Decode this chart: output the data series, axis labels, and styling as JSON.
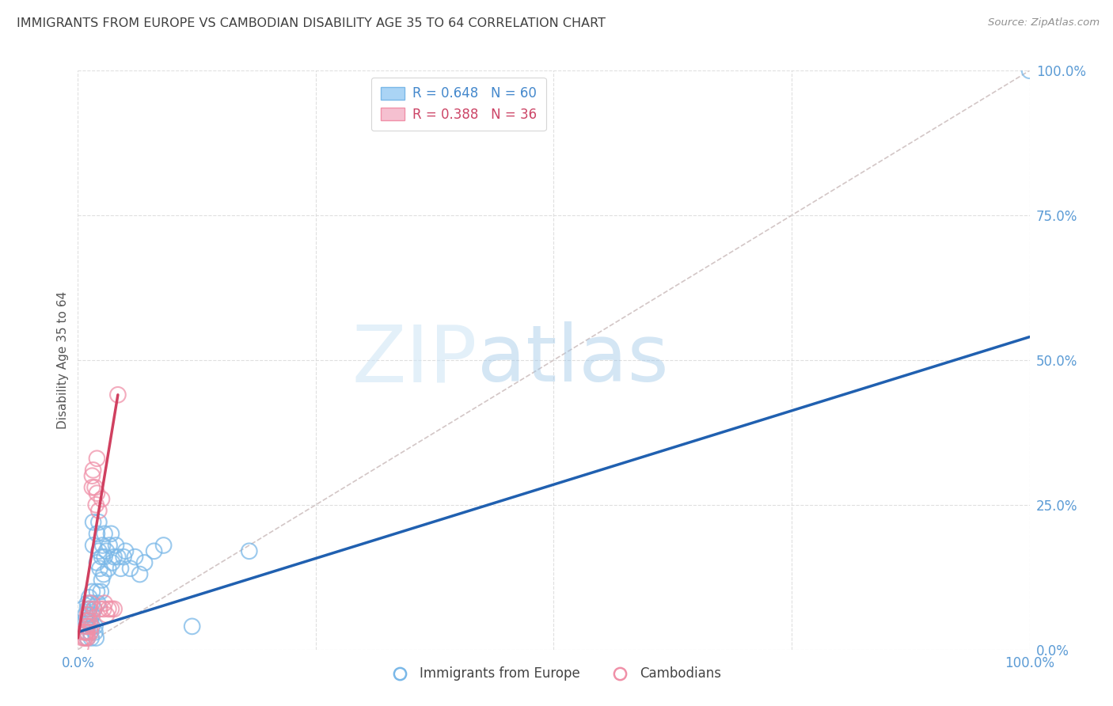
{
  "title": "IMMIGRANTS FROM EUROPE VS CAMBODIAN DISABILITY AGE 35 TO 64 CORRELATION CHART",
  "source": "Source: ZipAtlas.com",
  "ylabel": "Disability Age 35 to 64",
  "xlim": [
    0.0,
    1.0
  ],
  "ylim": [
    0.0,
    1.0
  ],
  "ytick_positions": [
    0.0,
    0.25,
    0.5,
    0.75,
    1.0
  ],
  "ytick_labels": [
    "0.0%",
    "25.0%",
    "50.0%",
    "75.0%",
    "100.0%"
  ],
  "xtick_positions": [
    0.0,
    1.0
  ],
  "xtick_labels": [
    "0.0%",
    "100.0%"
  ],
  "watermark_zip": "ZIP",
  "watermark_atlas": "atlas",
  "blue_color": "#5b9bd5",
  "pink_color": "#e8748a",
  "diag_color": "#c8b8b8",
  "axis_label_color": "#5b9bd5",
  "grid_color": "#d8d8d8",
  "background_color": "#ffffff",
  "title_color": "#404040",
  "source_color": "#909090",
  "ylabel_color": "#555555",
  "blue_scatter_x": [
    0.005,
    0.008,
    0.008,
    0.009,
    0.009,
    0.01,
    0.01,
    0.01,
    0.01,
    0.01,
    0.012,
    0.012,
    0.012,
    0.013,
    0.013,
    0.014,
    0.015,
    0.015,
    0.015,
    0.015,
    0.016,
    0.016,
    0.017,
    0.018,
    0.018,
    0.019,
    0.02,
    0.02,
    0.02,
    0.021,
    0.022,
    0.022,
    0.023,
    0.024,
    0.025,
    0.025,
    0.026,
    0.027,
    0.028,
    0.028,
    0.03,
    0.032,
    0.033,
    0.035,
    0.036,
    0.038,
    0.04,
    0.042,
    0.045,
    0.048,
    0.05,
    0.055,
    0.06,
    0.065,
    0.07,
    0.08,
    0.09,
    0.12,
    0.18,
    1.0
  ],
  "blue_scatter_y": [
    0.07,
    0.06,
    0.05,
    0.04,
    0.03,
    0.08,
    0.07,
    0.05,
    0.04,
    0.02,
    0.09,
    0.07,
    0.06,
    0.05,
    0.03,
    0.02,
    0.1,
    0.08,
    0.06,
    0.04,
    0.22,
    0.18,
    0.07,
    0.04,
    0.03,
    0.02,
    0.2,
    0.15,
    0.1,
    0.08,
    0.22,
    0.17,
    0.14,
    0.1,
    0.16,
    0.12,
    0.18,
    0.13,
    0.2,
    0.16,
    0.17,
    0.14,
    0.18,
    0.2,
    0.15,
    0.16,
    0.18,
    0.16,
    0.14,
    0.16,
    0.17,
    0.14,
    0.16,
    0.13,
    0.15,
    0.17,
    0.18,
    0.04,
    0.17,
    1.0
  ],
  "pink_scatter_x": [
    0.003,
    0.005,
    0.006,
    0.007,
    0.008,
    0.008,
    0.009,
    0.009,
    0.01,
    0.01,
    0.01,
    0.01,
    0.01,
    0.012,
    0.012,
    0.013,
    0.013,
    0.014,
    0.015,
    0.015,
    0.016,
    0.017,
    0.018,
    0.019,
    0.02,
    0.02,
    0.022,
    0.023,
    0.025,
    0.027,
    0.028,
    0.03,
    0.032,
    0.035,
    0.038,
    0.042
  ],
  "pink_scatter_y": [
    0.005,
    0.02,
    0.03,
    0.02,
    0.03,
    0.02,
    0.04,
    0.03,
    0.06,
    0.05,
    0.04,
    0.03,
    0.02,
    0.07,
    0.05,
    0.08,
    0.03,
    0.04,
    0.3,
    0.28,
    0.31,
    0.07,
    0.28,
    0.25,
    0.33,
    0.27,
    0.24,
    0.07,
    0.26,
    0.07,
    0.08,
    0.06,
    0.07,
    0.07,
    0.07,
    0.44
  ],
  "blue_line_x": [
    0.0,
    1.0
  ],
  "blue_line_y": [
    0.03,
    0.54
  ],
  "pink_line_x": [
    0.0,
    0.042
  ],
  "pink_line_y": [
    0.02,
    0.44
  ],
  "diag_line_x": [
    0.0,
    1.0
  ],
  "diag_line_y": [
    0.0,
    1.0
  ]
}
